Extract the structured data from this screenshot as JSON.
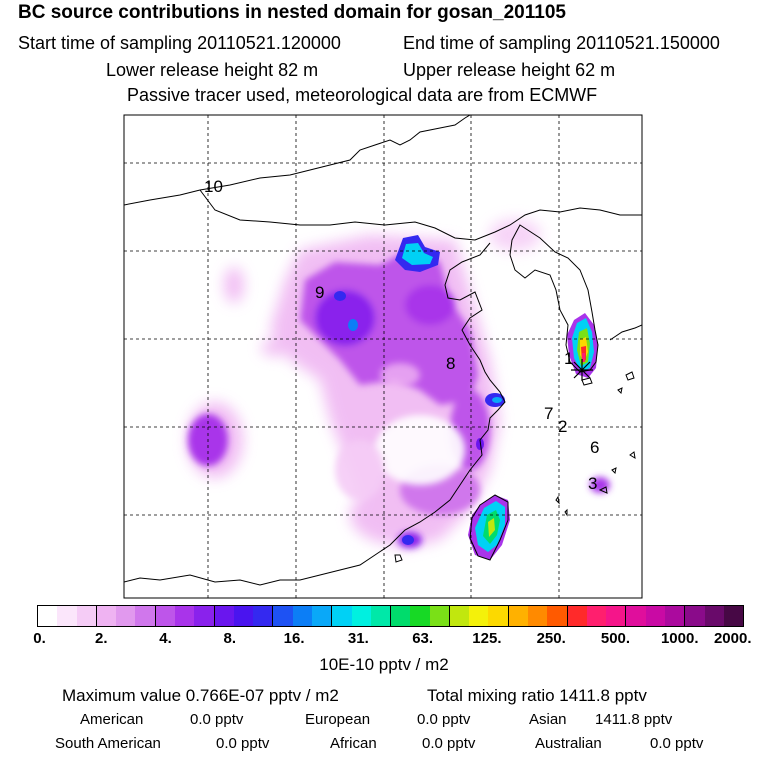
{
  "header": {
    "title": "BC  source contributions in nested domain for gosan_201105",
    "start_time": "Start time of sampling 20110521.120000",
    "end_time": "End time of sampling 20110521.150000",
    "lower_height": "Lower release height   82 m",
    "upper_height": "Upper release height   62 m",
    "tracer_note": "Passive tracer used, meteorological data are from ECMWF"
  },
  "map": {
    "region_labels": [
      "10",
      "9",
      "8",
      "1",
      "7",
      "2",
      "6",
      "3"
    ],
    "receptor_marker": "star-icon"
  },
  "colorbar": {
    "colors": [
      "#ffffff",
      "#fbe6fb",
      "#f5ccf6",
      "#efb3f2",
      "#e199ee",
      "#d077ec",
      "#be55ea",
      "#a934ea",
      "#8a22ec",
      "#6a16ee",
      "#4a14ef",
      "#3429f0",
      "#1e52f3",
      "#0c7ef6",
      "#0aa8f8",
      "#00d1f5",
      "#00f0e0",
      "#00e8a8",
      "#00dc6c",
      "#17d925",
      "#7ae017",
      "#c1e70e",
      "#f4f10a",
      "#fcd900",
      "#ffb100",
      "#ff8a00",
      "#ff5a00",
      "#ff2a2a",
      "#ff1f6e",
      "#f5158a",
      "#e00e9c",
      "#c90aa4",
      "#ab0a9e",
      "#8a0b8a",
      "#690a6a",
      "#470845"
    ],
    "tick_labels": [
      "0.",
      "2.",
      "4.",
      "8.",
      "16.",
      "31.",
      "63.",
      "125.",
      "250.",
      "500.",
      "1000.",
      "2000."
    ],
    "units": "10E-10 pptv / m2"
  },
  "stats": {
    "max_value": "Maximum value  0.766E-07 pptv / m2",
    "total_mixing": "Total mixing ratio     1411.8 pptv",
    "american_label": "American",
    "american_value": "0.0 pptv",
    "european_label": "European",
    "european_value": "0.0 pptv",
    "asian_label": "Asian",
    "asian_value": "1411.8 pptv",
    "south_american_label": "South American",
    "south_american_value": "0.0 pptv",
    "african_label": "African",
    "african_value": "0.0 pptv",
    "australian_label": "Australian",
    "australian_value": "0.0 pptv"
  }
}
